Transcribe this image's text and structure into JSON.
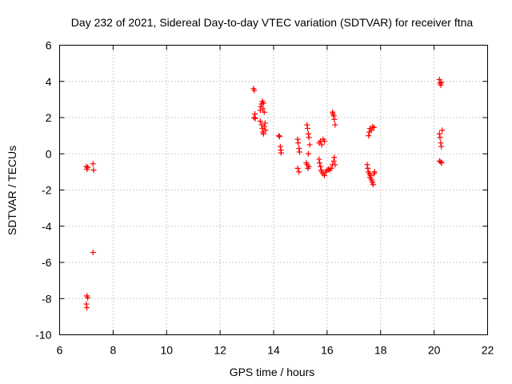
{
  "chart_data": {
    "type": "scatter",
    "title": "Day 232 of 2021, Sidereal Day-to-day VTEC variation (SDTVAR) for receiver ftna",
    "xlabel": "GPS time / hours",
    "ylabel": "SDTVAR / TECUs",
    "xlim": [
      6,
      22
    ],
    "ylim": [
      -10,
      6
    ],
    "x_ticks": [
      6,
      8,
      10,
      12,
      14,
      16,
      18,
      20,
      22
    ],
    "y_ticks": [
      6,
      4,
      2,
      0,
      -2,
      -4,
      -6,
      -8,
      -10
    ],
    "x_tick_labels": [
      "6",
      "8",
      "10",
      "12",
      "14",
      "16",
      "18",
      "20",
      "22"
    ],
    "y_tick_labels": [
      "6",
      "4",
      "2",
      "0",
      "-2",
      "-4",
      "-6",
      "-8",
      "-10"
    ],
    "grid": true,
    "marker": "plus",
    "marker_color": "#ff0000",
    "series": [
      {
        "name": "ftna",
        "points": [
          [
            7.0,
            -0.7
          ],
          [
            7.02,
            -0.85
          ],
          [
            7.05,
            -0.75
          ],
          [
            7.25,
            -0.55
          ],
          [
            7.27,
            -0.9
          ],
          [
            7.25,
            -5.45
          ],
          [
            7.02,
            -7.85
          ],
          [
            7.05,
            -7.95
          ],
          [
            7.0,
            -8.3
          ],
          [
            7.02,
            -8.5
          ],
          [
            13.25,
            3.6
          ],
          [
            13.28,
            3.5
          ],
          [
            13.3,
            2.2
          ],
          [
            13.27,
            2.0
          ],
          [
            13.32,
            1.95
          ],
          [
            13.5,
            2.4
          ],
          [
            13.52,
            2.6
          ],
          [
            13.55,
            2.75
          ],
          [
            13.58,
            2.9
          ],
          [
            13.6,
            2.5
          ],
          [
            13.62,
            2.8
          ],
          [
            13.65,
            2.3
          ],
          [
            13.5,
            1.8
          ],
          [
            13.55,
            1.6
          ],
          [
            13.58,
            1.4
          ],
          [
            13.6,
            1.2
          ],
          [
            13.62,
            1.1
          ],
          [
            13.65,
            1.5
          ],
          [
            13.68,
            1.7
          ],
          [
            13.7,
            1.3
          ],
          [
            14.2,
            1.0
          ],
          [
            14.22,
            0.95
          ],
          [
            14.25,
            0.4
          ],
          [
            14.27,
            0.2
          ],
          [
            14.28,
            0.05
          ],
          [
            14.9,
            0.8
          ],
          [
            14.92,
            0.6
          ],
          [
            14.95,
            0.3
          ],
          [
            14.97,
            0.1
          ],
          [
            14.9,
            -0.8
          ],
          [
            14.95,
            -1.0
          ],
          [
            15.25,
            1.6
          ],
          [
            15.27,
            1.4
          ],
          [
            15.3,
            1.1
          ],
          [
            15.32,
            0.9
          ],
          [
            15.35,
            0.5
          ],
          [
            15.3,
            0.0
          ],
          [
            15.22,
            -0.5
          ],
          [
            15.25,
            -0.6
          ],
          [
            15.28,
            -0.8
          ],
          [
            15.32,
            -0.7
          ],
          [
            15.7,
            0.6
          ],
          [
            15.75,
            0.7
          ],
          [
            15.8,
            0.5
          ],
          [
            15.85,
            0.8
          ],
          [
            15.9,
            0.7
          ],
          [
            15.7,
            -0.3
          ],
          [
            15.72,
            -0.5
          ],
          [
            15.75,
            -0.7
          ],
          [
            15.78,
            -0.9
          ],
          [
            15.8,
            -1.0
          ],
          [
            15.85,
            -1.1
          ],
          [
            15.9,
            -1.2
          ],
          [
            15.95,
            -1.0
          ],
          [
            16.0,
            -0.9
          ],
          [
            16.05,
            -0.85
          ],
          [
            16.1,
            -0.9
          ],
          [
            16.15,
            -0.8
          ],
          [
            16.2,
            -0.6
          ],
          [
            16.25,
            -0.4
          ],
          [
            16.27,
            -0.2
          ],
          [
            16.3,
            -0.6
          ],
          [
            16.2,
            2.3
          ],
          [
            16.22,
            2.2
          ],
          [
            16.25,
            2.1
          ],
          [
            16.27,
            1.9
          ],
          [
            16.3,
            1.6
          ],
          [
            17.55,
            1.0
          ],
          [
            17.58,
            1.2
          ],
          [
            17.6,
            1.4
          ],
          [
            17.65,
            1.3
          ],
          [
            17.7,
            1.5
          ],
          [
            17.75,
            1.45
          ],
          [
            17.5,
            -0.6
          ],
          [
            17.52,
            -0.8
          ],
          [
            17.55,
            -1.0
          ],
          [
            17.58,
            -1.1
          ],
          [
            17.6,
            -1.3
          ],
          [
            17.62,
            -1.2
          ],
          [
            17.65,
            -1.4
          ],
          [
            17.68,
            -1.5
          ],
          [
            17.7,
            -1.6
          ],
          [
            17.72,
            -1.7
          ],
          [
            17.75,
            -1.1
          ],
          [
            17.78,
            -1.0
          ],
          [
            20.2,
            4.1
          ],
          [
            20.22,
            3.9
          ],
          [
            20.25,
            3.8
          ],
          [
            20.27,
            3.95
          ],
          [
            20.2,
            1.1
          ],
          [
            20.22,
            0.9
          ],
          [
            20.25,
            0.6
          ],
          [
            20.27,
            0.4
          ],
          [
            20.3,
            1.3
          ],
          [
            20.2,
            -0.4
          ],
          [
            20.25,
            -0.45
          ],
          [
            20.28,
            -0.5
          ]
        ]
      }
    ]
  }
}
